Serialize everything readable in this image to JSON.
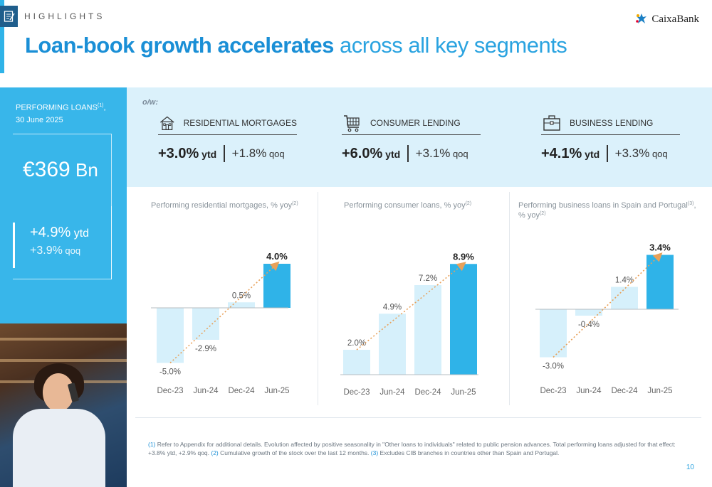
{
  "header": {
    "section_label": "HIGHLIGHTS",
    "title_bold": "Loan-book growth accelerates",
    "title_light": " across all key segments",
    "logo_text": "CaixaBank",
    "accent_color": "#2fb3e8"
  },
  "left_panel": {
    "label_main": "PERFORMING LOANS",
    "label_sup": "(1)",
    "label_date": "30 June 2025",
    "total_value": "€369",
    "total_unit": " Bn",
    "ytd_value": "+4.9%",
    "ytd_suffix": " ytd",
    "qoq_value": "+3.9%",
    "qoq_suffix": " qoq",
    "panel_color": "#38b6ea"
  },
  "segments": {
    "ofw_label": "o/w:",
    "items": [
      {
        "title": "RESIDENTIAL MORTGAGES",
        "icon": "house-icon",
        "ytd": "+3.0%",
        "ytd_suffix": " ytd",
        "qoq": "+1.8%",
        "qoq_suffix": " qoq"
      },
      {
        "title": "CONSUMER LENDING",
        "icon": "shopping-cart-icon",
        "ytd": "+6.0%",
        "ytd_suffix": " ytd",
        "qoq": "+3.1%",
        "qoq_suffix": " qoq"
      },
      {
        "title": "BUSINESS LENDING",
        "icon": "briefcase-icon",
        "ytd": "+4.1%",
        "ytd_suffix": " ytd",
        "qoq": "+3.3%",
        "qoq_suffix": " qoq"
      }
    ]
  },
  "chart_data": [
    {
      "type": "bar",
      "title": "Performing residential mortgages, % yoy",
      "title_sup": "(2)",
      "categories": [
        "Dec-23",
        "Jun-24",
        "Dec-24",
        "Jun-25"
      ],
      "values": [
        -5.0,
        -2.9,
        0.5,
        4.0
      ],
      "labels": [
        "-5.0%",
        "-2.9%",
        "0.5%",
        "4.0%"
      ],
      "highlight_last": true,
      "trend_arrow": true,
      "colors": {
        "bar": "#d6f0fb",
        "highlight": "#2fb3e8",
        "trend": "#e8a15a"
      }
    },
    {
      "type": "bar",
      "title": "Performing consumer loans, % yoy",
      "title_sup": "(2)",
      "categories": [
        "Dec-23",
        "Jun-24",
        "Dec-24",
        "Jun-25"
      ],
      "values": [
        2.0,
        4.9,
        7.2,
        8.9
      ],
      "labels": [
        "2.0%",
        "4.9%",
        "7.2%",
        "8.9%"
      ],
      "highlight_last": true,
      "trend_arrow": true,
      "colors": {
        "bar": "#d6f0fb",
        "highlight": "#2fb3e8",
        "trend": "#e8a15a"
      }
    },
    {
      "type": "bar",
      "title": "Performing business loans in Spain and Portugal",
      "title_sup": "(3)",
      "title_line2": "% yoy",
      "title_line2_sup": "(2)",
      "categories": [
        "Dec-23",
        "Jun-24",
        "Dec-24",
        "Jun-25"
      ],
      "values": [
        -3.0,
        -0.4,
        1.4,
        3.4
      ],
      "labels": [
        "-3.0%",
        "-0.4%",
        "1.4%",
        "3.4%"
      ],
      "highlight_last": true,
      "trend_arrow": true,
      "colors": {
        "bar": "#d6f0fb",
        "highlight": "#2fb3e8",
        "trend": "#e8a15a"
      }
    }
  ],
  "footnote": {
    "n1": "(1)",
    "t1": " Refer to Appendix for additional details. Evolution affected by positive seasonality in \"Other loans to individuals\" related to public pension advances. Total performing loans adjusted for that effect: +3.8% ytd, +2.9% qoq. ",
    "n2": "(2)",
    "t2": " Cumulative growth of the stock over the last 12 months. ",
    "n3": "(3)",
    "t3": " Excludes CIB branches in countries other than Spain and Portugal."
  },
  "page_number": "10"
}
